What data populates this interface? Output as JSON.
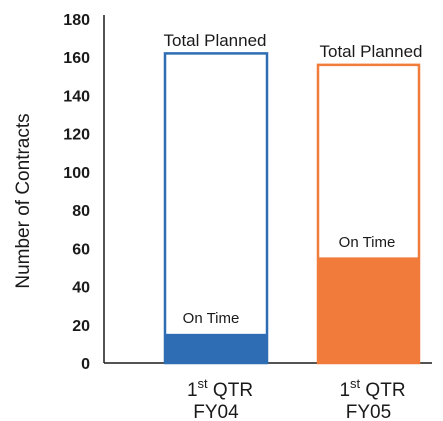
{
  "chart_data": {
    "type": "bar",
    "ylabel": "Number of Contracts",
    "ylim": [
      0,
      180
    ],
    "yticks": [
      0,
      20,
      40,
      60,
      80,
      100,
      120,
      140,
      160,
      180
    ],
    "categories": [
      {
        "ordinal": "1",
        "suffix": "st",
        "label": "QTR",
        "year": "FY04"
      },
      {
        "ordinal": "1",
        "suffix": "st",
        "label": "QTR",
        "year": "FY05"
      }
    ],
    "series": [
      {
        "name": "Total Planned",
        "values": [
          162,
          156
        ]
      },
      {
        "name": "On Time",
        "values": [
          15,
          55
        ]
      }
    ],
    "colors": [
      "#2e6db4",
      "#f07b3a"
    ]
  }
}
